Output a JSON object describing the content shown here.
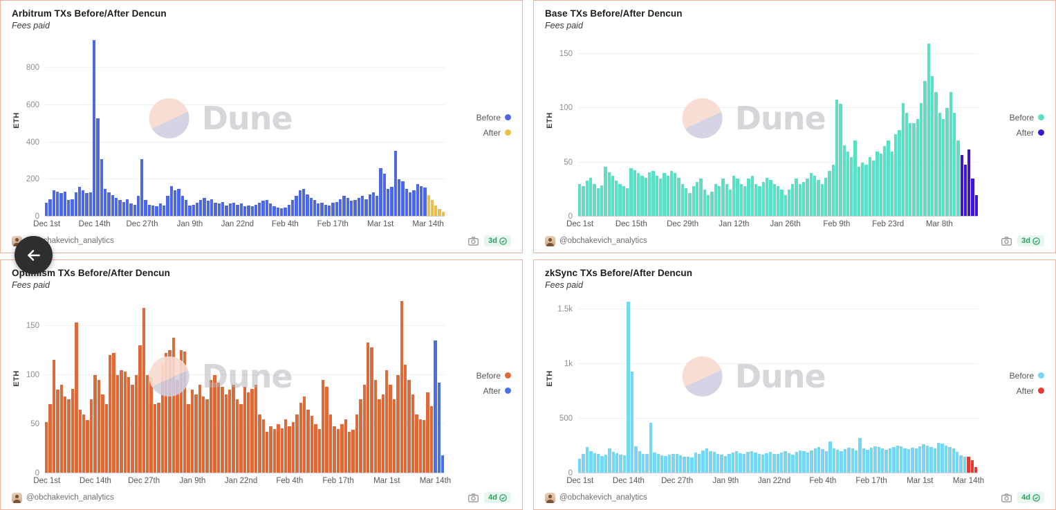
{
  "back_button": {
    "label": "back"
  },
  "watermark": {
    "text": "Dune"
  },
  "panels": [
    {
      "title": "Arbitrum TXs Before/After Dencun",
      "subtitle": "Fees paid",
      "y_axis_label": "ETH",
      "legend": [
        {
          "label": "Before"
        },
        {
          "label": "After"
        }
      ],
      "footer": {
        "author": "@obchakevich_analytics",
        "updated": "3d"
      }
    },
    {
      "title": "Base TXs Before/After Dencun",
      "subtitle": "Fees paid",
      "y_axis_label": "ETH",
      "legend": [
        {
          "label": "Before"
        },
        {
          "label": "After"
        }
      ],
      "footer": {
        "author": "@obchakevich_analytics",
        "updated": "3d"
      }
    },
    {
      "title": "Optimism TXs Before/After Dencun",
      "subtitle": "Fees paid",
      "y_axis_label": "ETH",
      "legend": [
        {
          "label": "Before"
        },
        {
          "label": "After"
        }
      ],
      "footer": {
        "author": "@obchakevich_analytics",
        "updated": "4d"
      }
    },
    {
      "title": "zkSync TXs Before/After Dencun",
      "subtitle": "Fees paid",
      "y_axis_label": "ETH",
      "legend": [
        {
          "label": "Before"
        },
        {
          "label": "After"
        }
      ],
      "footer": {
        "author": "@obchakevich_analytics",
        "updated": "4d"
      }
    }
  ],
  "chart_data": [
    {
      "type": "bar",
      "title": "Arbitrum TXs Before/After Dencun",
      "subtitle": "Fees paid",
      "ylabel": "ETH",
      "ylim": [
        0,
        980
      ],
      "ytick_values": [
        0,
        200,
        400,
        600,
        800
      ],
      "ytick_labels": [
        "0",
        "200",
        "400",
        "600",
        "800"
      ],
      "xtick_labels": [
        "Dec 1st",
        "Dec 14th",
        "Dec 27th",
        "Jan 9th",
        "Jan 22nd",
        "Feb 4th",
        "Feb 17th",
        "Mar 1st",
        "Mar 14th"
      ],
      "xtick_step": 13,
      "grid": true,
      "legend_position": "right",
      "series": [
        {
          "name": "Before",
          "color": "#4d68e2",
          "values": [
            75,
            95,
            140,
            135,
            125,
            135,
            90,
            95,
            130,
            160,
            140,
            125,
            130,
            950,
            530,
            310,
            150,
            130,
            115,
            100,
            90,
            80,
            95,
            70,
            65,
            110,
            310,
            90,
            65,
            60,
            55,
            70,
            60,
            110,
            165,
            140,
            150,
            110,
            90,
            60,
            65,
            75,
            90,
            100,
            85,
            95,
            75,
            70,
            80,
            60,
            70,
            75,
            65,
            70,
            55,
            60,
            55,
            65,
            75,
            85,
            90,
            70,
            55,
            50,
            45,
            50,
            65,
            90,
            110,
            140,
            150,
            120,
            100,
            90,
            70,
            75,
            65,
            60,
            75,
            80,
            95,
            110,
            100,
            85,
            90,
            100,
            110,
            95,
            120,
            130,
            110,
            260,
            230,
            150,
            160,
            355,
            200,
            190,
            150,
            130,
            140,
            175,
            165,
            155
          ]
        },
        {
          "name": "After",
          "color": "#eac04b",
          "values": [
            115,
            90,
            60,
            40,
            25
          ]
        }
      ]
    },
    {
      "type": "bar",
      "title": "Base TXs Before/After Dencun",
      "subtitle": "Fees paid",
      "ylabel": "ETH",
      "ylim": [
        0,
        168
      ],
      "ytick_values": [
        0,
        50,
        100,
        150
      ],
      "ytick_labels": [
        "0",
        "50",
        "100",
        "150"
      ],
      "xtick_labels": [
        "Dec 1st",
        "Dec 15th",
        "Dec 29th",
        "Jan 12th",
        "Jan 26th",
        "Feb 9th",
        "Feb 23rd",
        "Mar 8th"
      ],
      "xtick_step": 14,
      "grid": true,
      "legend_position": "right",
      "series": [
        {
          "name": "Before",
          "color": "#5ce0c5",
          "values": [
            30,
            28,
            33,
            36,
            30,
            26,
            29,
            46,
            41,
            38,
            33,
            30,
            28,
            26,
            45,
            43,
            40,
            38,
            36,
            41,
            42,
            38,
            35,
            40,
            38,
            42,
            40,
            36,
            30,
            26,
            22,
            28,
            32,
            35,
            25,
            20,
            23,
            30,
            28,
            35,
            30,
            25,
            38,
            35,
            30,
            28,
            35,
            38,
            30,
            28,
            32,
            36,
            34,
            30,
            28,
            25,
            20,
            25,
            30,
            35,
            30,
            32,
            35,
            40,
            38,
            34,
            30,
            36,
            42,
            48,
            108,
            104,
            66,
            60,
            55,
            70,
            46,
            50,
            48,
            55,
            52,
            60,
            58,
            65,
            70,
            60,
            76,
            80,
            105,
            96,
            86,
            86,
            90,
            105,
            125,
            160,
            130,
            115,
            96,
            90,
            100,
            115,
            96,
            70
          ]
        },
        {
          "name": "After",
          "color": "#3a16d1",
          "values": [
            57,
            48,
            62,
            35,
            20
          ]
        }
      ]
    },
    {
      "type": "bar",
      "title": "Optimism TXs Before/After Dencun",
      "subtitle": "Fees paid",
      "ylabel": "ETH",
      "ylim": [
        0,
        182
      ],
      "ytick_values": [
        0,
        50,
        100,
        150
      ],
      "ytick_labels": [
        "0",
        "50",
        "100",
        "150"
      ],
      "xtick_labels": [
        "Dec 1st",
        "Dec 14th",
        "Dec 27th",
        "Jan 9th",
        "Jan 22nd",
        "Feb 4th",
        "Feb 17th",
        "Mar 1st",
        "Mar 14th"
      ],
      "xtick_step": 13,
      "grid": true,
      "legend_position": "right",
      "series": [
        {
          "name": "Before",
          "color": "#de6a3a",
          "values": [
            52,
            70,
            115,
            85,
            90,
            78,
            75,
            86,
            153,
            65,
            60,
            54,
            75,
            100,
            95,
            80,
            70,
            120,
            122,
            100,
            105,
            103,
            98,
            90,
            100,
            130,
            168,
            100,
            98,
            70,
            72,
            110,
            122,
            125,
            138,
            95,
            125,
            124,
            70,
            85,
            80,
            90,
            78,
            75,
            95,
            100,
            92,
            88,
            80,
            85,
            90,
            75,
            70,
            88,
            82,
            86,
            90,
            60,
            55,
            42,
            48,
            45,
            50,
            46,
            55,
            48,
            52,
            60,
            72,
            78,
            65,
            58,
            50,
            45,
            95,
            88,
            60,
            48,
            45,
            50,
            55,
            42,
            44,
            60,
            75,
            90,
            133,
            128,
            95,
            75,
            80,
            105,
            90,
            75,
            100,
            175,
            110,
            95,
            80,
            60,
            55,
            54,
            82,
            68
          ]
        },
        {
          "name": "After",
          "color": "#4a70e8",
          "values": [
            135,
            92,
            18
          ]
        }
      ]
    },
    {
      "type": "bar",
      "title": "zkSync TXs Before/After Dencun",
      "subtitle": "Fees paid",
      "ylabel": "ETH",
      "ylim": [
        0,
        1640
      ],
      "ytick_values": [
        0,
        500,
        1000,
        1500
      ],
      "ytick_labels": [
        "0",
        "500",
        "1k",
        "1.5k"
      ],
      "xtick_labels": [
        "Dec 1st",
        "Dec 14th",
        "Dec 27th",
        "Jan 9th",
        "Jan 22nd",
        "Feb 4th",
        "Feb 17th",
        "Mar 1st",
        "Mar 14th"
      ],
      "xtick_step": 13,
      "grid": true,
      "legend_position": "right",
      "series": [
        {
          "name": "Before",
          "color": "#76d7f4",
          "values": [
            130,
            175,
            240,
            200,
            185,
            175,
            160,
            170,
            230,
            195,
            185,
            170,
            165,
            1570,
            930,
            250,
            200,
            180,
            175,
            460,
            190,
            175,
            165,
            160,
            170,
            180,
            175,
            165,
            155,
            150,
            145,
            190,
            175,
            210,
            230,
            205,
            195,
            180,
            170,
            160,
            175,
            190,
            200,
            185,
            175,
            195,
            205,
            190,
            180,
            170,
            185,
            195,
            180,
            175,
            190,
            200,
            185,
            170,
            195,
            210,
            200,
            190,
            210,
            225,
            240,
            220,
            205,
            290,
            230,
            215,
            205,
            220,
            235,
            225,
            210,
            320,
            230,
            215,
            235,
            250,
            240,
            225,
            215,
            230,
            240,
            255,
            245,
            230,
            220,
            235,
            225,
            250,
            265,
            255,
            240,
            230,
            280,
            270,
            255,
            240,
            225,
            195,
            165,
            150
          ]
        },
        {
          "name": "After",
          "color": "#e63a2e",
          "values": [
            150,
            120,
            55
          ]
        }
      ]
    }
  ]
}
